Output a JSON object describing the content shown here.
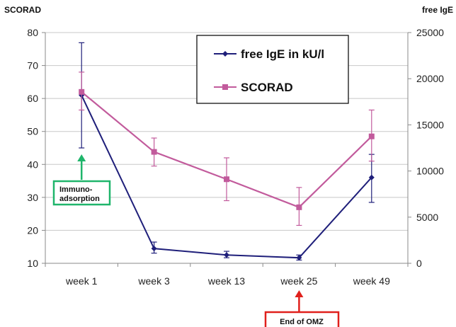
{
  "chart_data": {
    "type": "line",
    "categories": [
      "week 1",
      "week 3",
      "week 13",
      "week 25",
      "week 49"
    ],
    "y_left": {
      "label": "SCORAD",
      "ylim": [
        10,
        80
      ],
      "ticks": [
        "10",
        "20",
        "30",
        "40",
        "50",
        "60",
        "70",
        "80"
      ]
    },
    "y_right": {
      "label": "free IgE",
      "ylim": [
        0,
        25000
      ],
      "ticks": [
        "0",
        "5000",
        "10000",
        "15000",
        "20000",
        "25000"
      ]
    },
    "series": [
      {
        "name": "free IgE in kU/l",
        "axis": "right",
        "color": "#1f1f7a",
        "marker": "diamond",
        "values": [
          18200,
          1600,
          900,
          600,
          9300
        ],
        "error": [
          [
            12500,
            23900
          ],
          [
            1100,
            2300
          ],
          [
            600,
            1300
          ],
          [
            350,
            900
          ],
          [
            6600,
            11800
          ]
        ]
      },
      {
        "name": "SCORAD",
        "axis": "left",
        "color": "#c25b9c",
        "marker": "square",
        "values": [
          62,
          43.8,
          35.5,
          27,
          48.5
        ],
        "error": [
          [
            56.5,
            68
          ],
          [
            39.5,
            48
          ],
          [
            29,
            42
          ],
          [
            21.5,
            33
          ],
          [
            41,
            56.5
          ]
        ]
      }
    ],
    "legend_position": "top-right",
    "grid": "horizontal",
    "annotations": [
      {
        "lines": [
          "Immuno-",
          "adsorption"
        ],
        "target": "week 1",
        "box_color": "#1fb56b",
        "arrow_color": "#1fb56b"
      },
      {
        "lines": [
          "End of OMZ"
        ],
        "target": "week 25",
        "box_color": "#e0201c",
        "arrow_color": "#e0201c"
      }
    ]
  }
}
